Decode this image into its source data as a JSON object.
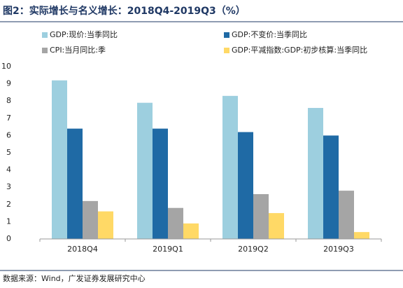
{
  "chart_data": {
    "type": "bar",
    "title": "图2：实际增长与名义增长：2018Q4-2019Q3（%）",
    "source": "数据来源：Wind，广发证券发展研究中心",
    "categories": [
      "2018Q4",
      "2019Q1",
      "2019Q2",
      "2019Q3"
    ],
    "series": [
      {
        "name": "GDP:现价:当季同比",
        "color": "#9dcfdf",
        "values": [
          9.2,
          7.9,
          8.3,
          7.6
        ]
      },
      {
        "name": "GDP:不变价:当季同比",
        "color": "#1f6aa5",
        "values": [
          6.4,
          6.4,
          6.2,
          6.0
        ]
      },
      {
        "name": "CPI:当月同比:季",
        "color": "#a5a5a5",
        "values": [
          2.2,
          1.8,
          2.6,
          2.8
        ]
      },
      {
        "name": "GDP:平减指数:GDP:初步核算:当季同比",
        "color": "#ffd966",
        "values": [
          1.6,
          0.9,
          1.5,
          0.4
        ]
      }
    ],
    "ylim": [
      0,
      10
    ],
    "yticks": [
      0,
      1,
      2,
      3,
      4,
      5,
      6,
      7,
      8,
      9,
      10
    ],
    "grid": false
  }
}
